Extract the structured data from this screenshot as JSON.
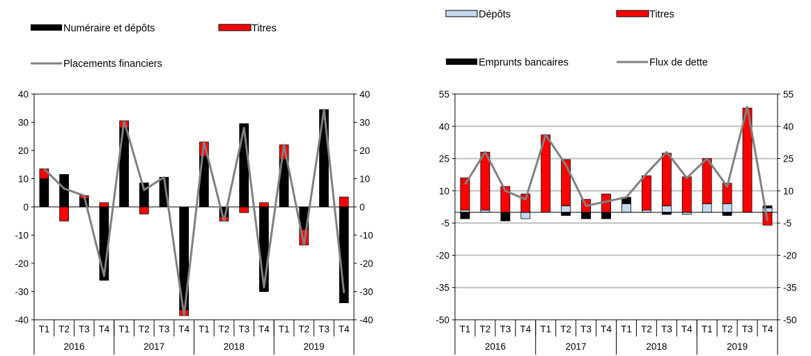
{
  "colors": {
    "black": "#000000",
    "red": "#ff0000",
    "grey_line": "#808080",
    "light_blue": "#c5d9f1",
    "gridline": "#c0c0c0"
  },
  "chart_data": [
    {
      "type": "bar",
      "stacked": true,
      "quarters": [
        "T1",
        "T2",
        "T3",
        "T4",
        "T1",
        "T2",
        "T3",
        "T4",
        "T1",
        "T2",
        "T3",
        "T4",
        "T1",
        "T2",
        "T3",
        "T4"
      ],
      "years": [
        "2016",
        "2017",
        "2018",
        "2019"
      ],
      "ylim": [
        -40,
        40
      ],
      "yticks": [
        40,
        30,
        20,
        10,
        0,
        -10,
        -20,
        -30,
        -40
      ],
      "secondary_yticks": [
        40,
        30,
        20,
        10,
        0,
        -10,
        -20,
        -30,
        -40
      ],
      "grid": false,
      "legend": {
        "position": "top",
        "items": [
          {
            "name": "Numéraire et dépôts",
            "kind": "bar",
            "color": "#000000"
          },
          {
            "name": "Titres",
            "kind": "bar",
            "color": "#ff0000"
          },
          {
            "name": "Placements financiers",
            "kind": "line",
            "color": "#808080"
          }
        ]
      },
      "series": [
        {
          "name": "Numéraire et dépôts",
          "color": "#000000",
          "values": [
            10,
            11.5,
            3,
            -26,
            28,
            8.5,
            10.5,
            -36.5,
            18,
            -3.5,
            29.5,
            -30,
            17,
            -8,
            34.5,
            -34
          ]
        },
        {
          "name": "Titres",
          "color": "#ff0000",
          "values": [
            3.5,
            -5,
            1,
            1.5,
            2.5,
            -2.5,
            0,
            -2,
            5,
            -1.5,
            -2,
            1.5,
            5,
            -5.5,
            0,
            3.5
          ]
        }
      ],
      "line": {
        "name": "Placements financiers",
        "color": "#808080",
        "values": [
          13.5,
          6.5,
          4,
          -24.5,
          30.5,
          6,
          10.5,
          -38.5,
          23,
          -5,
          28,
          -28.5,
          22,
          -13.5,
          34.5,
          -30.5
        ]
      }
    },
    {
      "type": "bar",
      "stacked": true,
      "quarters": [
        "T1",
        "T2",
        "T3",
        "T4",
        "T1",
        "T2",
        "T3",
        "T4",
        "T1",
        "T2",
        "T3",
        "T4",
        "T1",
        "T2",
        "T3",
        "T4"
      ],
      "years": [
        "2016",
        "2017",
        "2018",
        "2019"
      ],
      "ylim": [
        -50,
        55
      ],
      "yticks": [
        55,
        40,
        25,
        10,
        -5,
        -20,
        -35,
        -50
      ],
      "secondary_yticks": [
        55,
        40,
        25,
        10,
        -5,
        -20,
        -35,
        -50
      ],
      "grid": true,
      "legend": {
        "position": "top",
        "items": [
          {
            "name": "Dépôts",
            "kind": "bar",
            "color": "#c5d9f1"
          },
          {
            "name": "Titres",
            "kind": "bar",
            "color": "#ff0000"
          },
          {
            "name": "Emprunts bancaires",
            "kind": "bar",
            "color": "#000000"
          },
          {
            "name": "Flux de dette",
            "kind": "line",
            "color": "#808080"
          }
        ]
      },
      "series": [
        {
          "name": "Dépôts",
          "color": "#c5d9f1",
          "values": [
            1,
            1,
            0,
            -3,
            0,
            3,
            0,
            0,
            4,
            1,
            3,
            -1,
            4,
            4,
            0,
            2
          ]
        },
        {
          "name": "Titres",
          "color": "#ff0000",
          "values": [
            15,
            27,
            12,
            8.5,
            36,
            21.5,
            6,
            8.5,
            0,
            16,
            24.5,
            16.5,
            21,
            9.5,
            48.5,
            -6
          ]
        },
        {
          "name": "Emprunts bancaires",
          "color": "#000000",
          "values": [
            -3,
            0,
            -4,
            0,
            0,
            -1.5,
            -3,
            -3,
            3,
            0,
            -1,
            0,
            0,
            -1.5,
            0,
            1
          ]
        }
      ],
      "line": {
        "name": "Flux de dette",
        "color": "#808080",
        "values": [
          13,
          28,
          10,
          6,
          36,
          22,
          3,
          5,
          7,
          18,
          28,
          16,
          25,
          12,
          49,
          -4
        ]
      }
    }
  ]
}
